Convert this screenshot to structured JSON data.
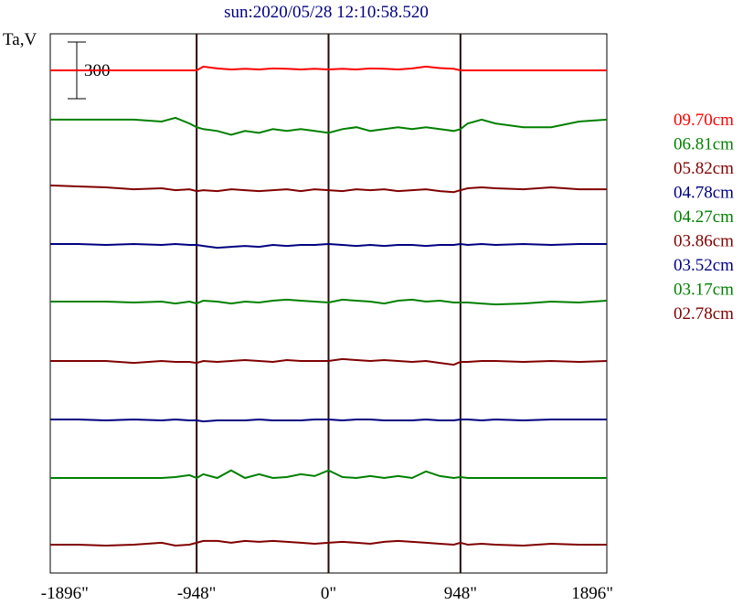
{
  "title": "sun:2020/05/28 12:10:58.520",
  "chart_data": {
    "type": "line",
    "title": "sun:2020/05/28 12:10:58.520",
    "ylabel": "Ta,V",
    "xlabel": "",
    "xlim": [
      -2000,
      2000
    ],
    "x_ticks": [
      -1896,
      -948,
      0,
      948,
      1896
    ],
    "x_tick_labels": [
      "-1896\"",
      "-948\"",
      "0\"",
      "948\"",
      "1896\""
    ],
    "vertical_lines_at": [
      -948,
      0,
      948
    ],
    "scale_bar": {
      "label": "300",
      "value": 300
    },
    "grid": false,
    "legend_position": "right",
    "x": [
      -2000,
      -1800,
      -1600,
      -1400,
      -1200,
      -1100,
      -1000,
      -948,
      -900,
      -800,
      -700,
      -600,
      -500,
      -400,
      -300,
      -200,
      -100,
      0,
      100,
      200,
      300,
      400,
      500,
      600,
      700,
      800,
      900,
      948,
      1000,
      1100,
      1200,
      1400,
      1600,
      1800,
      2000
    ],
    "series": [
      {
        "name": "09.70cm",
        "color": "#ff0000",
        "values": [
          0,
          0,
          0,
          0,
          0,
          0,
          0,
          0,
          20,
          10,
          5,
          8,
          5,
          10,
          8,
          5,
          8,
          5,
          8,
          5,
          10,
          8,
          5,
          10,
          20,
          12,
          8,
          0,
          0,
          0,
          0,
          0,
          0,
          0,
          0
        ]
      },
      {
        "name": "06.81cm",
        "color": "#008000",
        "values": [
          10,
          10,
          10,
          10,
          0,
          20,
          -10,
          -30,
          -40,
          -50,
          -70,
          -50,
          -60,
          -40,
          -50,
          -40,
          -50,
          -60,
          -40,
          -30,
          -50,
          -40,
          -30,
          -40,
          -30,
          -40,
          -50,
          -40,
          -10,
          10,
          -10,
          -30,
          -30,
          0,
          10
        ]
      },
      {
        "name": "05.82cm",
        "color": "#800000",
        "values": [
          10,
          5,
          0,
          -10,
          -5,
          -15,
          -10,
          -20,
          -15,
          -20,
          -10,
          -15,
          -20,
          -15,
          -10,
          -20,
          -10,
          -15,
          -20,
          -10,
          -15,
          -10,
          -20,
          -15,
          -10,
          -20,
          -25,
          -15,
          -5,
          0,
          -5,
          -10,
          0,
          -10,
          -10
        ]
      },
      {
        "name": "04.78cm",
        "color": "#000080",
        "values": [
          0,
          0,
          -5,
          0,
          -5,
          0,
          -5,
          -5,
          -10,
          -20,
          -15,
          -10,
          -15,
          -5,
          -10,
          -5,
          -5,
          0,
          -5,
          -10,
          -5,
          -10,
          -5,
          -5,
          -10,
          -5,
          -5,
          0,
          -5,
          0,
          -5,
          0,
          -5,
          0,
          0
        ]
      },
      {
        "name": "04.27cm",
        "color": "#008000",
        "values": [
          0,
          0,
          0,
          -5,
          0,
          -10,
          0,
          -10,
          5,
          0,
          -10,
          0,
          -5,
          5,
          10,
          5,
          0,
          -5,
          10,
          5,
          0,
          -10,
          5,
          10,
          0,
          5,
          -5,
          -5,
          -5,
          -10,
          -15,
          -10,
          0,
          -5,
          5
        ]
      },
      {
        "name": "03.86cm",
        "color": "#800000",
        "values": [
          0,
          0,
          0,
          -10,
          0,
          -5,
          -5,
          -10,
          0,
          -5,
          0,
          5,
          0,
          -5,
          5,
          0,
          0,
          0,
          10,
          5,
          0,
          5,
          0,
          -5,
          0,
          -10,
          -20,
          -5,
          -5,
          0,
          0,
          -5,
          0,
          -5,
          0
        ]
      },
      {
        "name": "03.52cm",
        "color": "#000080",
        "values": [
          0,
          0,
          -5,
          0,
          -5,
          0,
          -5,
          -5,
          -10,
          -5,
          -5,
          -5,
          0,
          -5,
          -5,
          -5,
          0,
          0,
          -5,
          0,
          0,
          -5,
          -5,
          -5,
          0,
          -5,
          -5,
          0,
          0,
          -5,
          0,
          -5,
          0,
          0,
          0
        ]
      },
      {
        "name": "03.17cm",
        "color": "#008000",
        "values": [
          0,
          0,
          0,
          0,
          0,
          5,
          15,
          0,
          20,
          0,
          40,
          0,
          20,
          0,
          5,
          20,
          10,
          40,
          5,
          0,
          10,
          0,
          10,
          0,
          35,
          10,
          0,
          5,
          0,
          0,
          0,
          0,
          0,
          0,
          0
        ]
      },
      {
        "name": "02.78cm",
        "color": "#800000",
        "values": [
          0,
          0,
          -5,
          0,
          10,
          -5,
          0,
          10,
          20,
          20,
          10,
          20,
          15,
          20,
          15,
          10,
          5,
          10,
          15,
          10,
          5,
          15,
          20,
          15,
          10,
          5,
          0,
          10,
          0,
          5,
          0,
          -5,
          5,
          0,
          0
        ]
      }
    ]
  }
}
